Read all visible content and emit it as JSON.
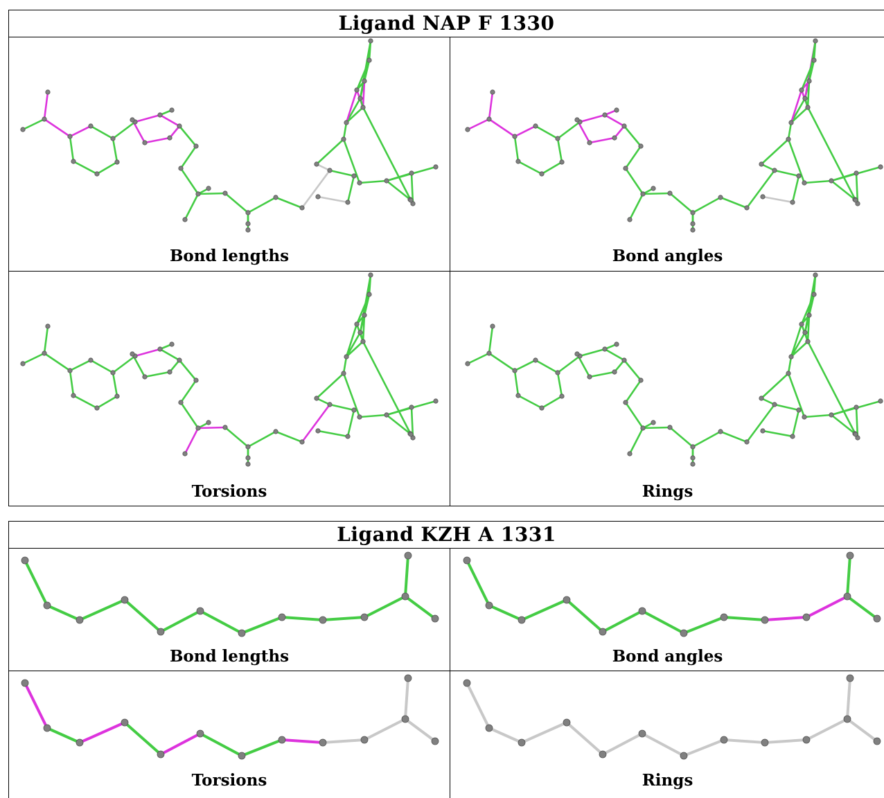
{
  "colors": {
    "good": "#44cc44",
    "outlier": "#dd33dd",
    "neutral": "#c8c8c8",
    "atom": "#808080"
  },
  "ligands": [
    {
      "title": "Ligand NAP F 1330",
      "panels": [
        {
          "label": "Bond lengths"
        },
        {
          "label": "Bond angles"
        },
        {
          "label": "Torsions"
        },
        {
          "label": "Rings"
        }
      ]
    },
    {
      "title": "Ligand KZH A 1331",
      "panels": [
        {
          "label": "Bond lengths"
        },
        {
          "label": "Bond angles"
        },
        {
          "label": "Torsions"
        },
        {
          "label": "Rings"
        }
      ]
    }
  ],
  "nap_coloring": {
    "bond_lengths": {
      "outlier": [
        0,
        2,
        3,
        10,
        11,
        12,
        13,
        14,
        44,
        45,
        46,
        47
      ],
      "neutral": [
        27,
        28,
        39
      ]
    },
    "bond_angles": {
      "outlier": [
        0,
        1,
        2,
        3,
        10,
        11,
        12,
        13,
        14,
        15,
        45,
        46,
        48,
        49
      ],
      "neutral": [
        39
      ]
    },
    "torsions": {
      "good": [
        1,
        16,
        17,
        18,
        19,
        22,
        24,
        25,
        26,
        29,
        30,
        31,
        32,
        33,
        38
      ],
      "outlier": [
        10,
        20,
        21,
        27
      ]
    },
    "rings": {
      "good": [
        4,
        5,
        6,
        7,
        8,
        9,
        10,
        11,
        12,
        13,
        14,
        15,
        40,
        41,
        42,
        43,
        44,
        45,
        46,
        47,
        48,
        49,
        50,
        51,
        52,
        53,
        54
      ]
    }
  },
  "kzh_coloring": {
    "bond_lengths": {
      "default": "good"
    },
    "bond_angles": {
      "default": "good",
      "outlier": [
        8,
        9
      ]
    },
    "torsions": {
      "default": "neutral",
      "good": [
        1,
        3,
        5,
        6
      ],
      "outlier": [
        0,
        2,
        4,
        7
      ]
    },
    "rings": {
      "default": "neutral"
    }
  }
}
